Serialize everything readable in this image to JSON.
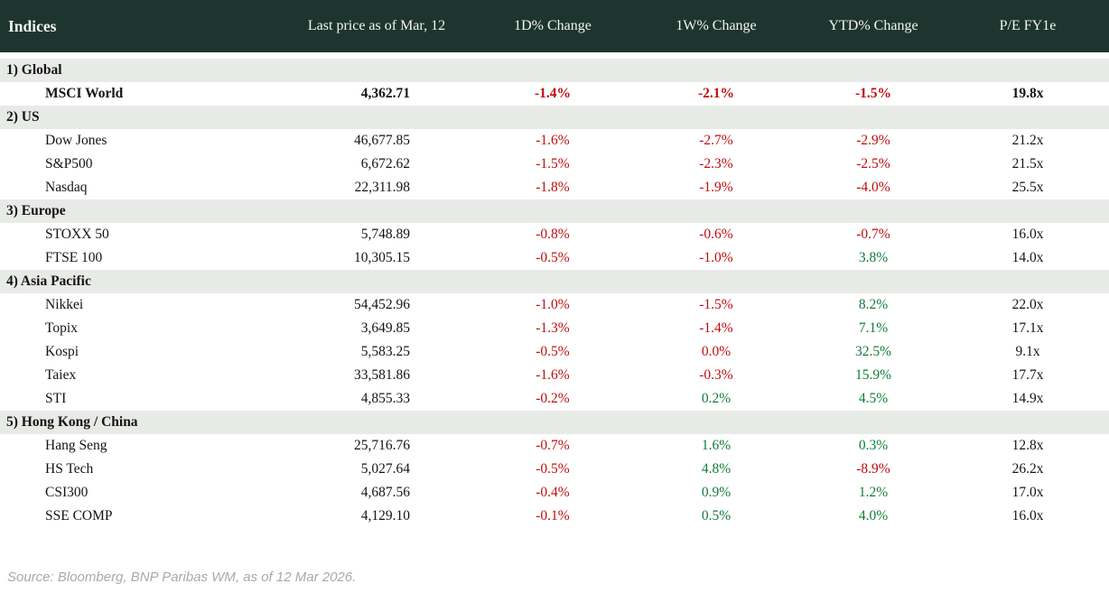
{
  "colors": {
    "header_background": "#1e352f",
    "header_text": "#f5f4ef",
    "section_row_background": "#e7eae6",
    "negative_value": "#c00d0d",
    "positive_value": "#0e7d38",
    "body_text": "#141414",
    "source_text": "#a2abb2"
  },
  "chart_data": {
    "type": "table",
    "title": "Indices",
    "columns": [
      "Indices",
      "Last price as of Mar, 12",
      "1D% Change",
      "1W% Change",
      "YTD% Change",
      "P/E FY1e"
    ],
    "sections": [
      {
        "label": "1) Global",
        "rows": [
          {
            "name": "MSCI World",
            "price": "4,362.71",
            "d1": "-1.4%",
            "w1": "-2.1%",
            "ytd": "-1.5%",
            "pe": "19.8x",
            "bold": true
          }
        ]
      },
      {
        "label": "2) US",
        "rows": [
          {
            "name": "Dow Jones",
            "price": "46,677.85",
            "d1": "-1.6%",
            "w1": "-2.7%",
            "ytd": "-2.9%",
            "pe": "21.2x"
          },
          {
            "name": "S&P500",
            "price": "6,672.62",
            "d1": "-1.5%",
            "w1": "-2.3%",
            "ytd": "-2.5%",
            "pe": "21.5x"
          },
          {
            "name": "Nasdaq",
            "price": "22,311.98",
            "d1": "-1.8%",
            "w1": "-1.9%",
            "ytd": "-4.0%",
            "pe": "25.5x"
          }
        ]
      },
      {
        "label": "3) Europe",
        "rows": [
          {
            "name": "STOXX 50",
            "price": "5,748.89",
            "d1": "-0.8%",
            "w1": "-0.6%",
            "ytd": "-0.7%",
            "pe": "16.0x"
          },
          {
            "name": "FTSE 100",
            "price": "10,305.15",
            "d1": "-0.5%",
            "w1": "-1.0%",
            "ytd": "3.8%",
            "pe": "14.0x"
          }
        ]
      },
      {
        "label": "4) Asia Pacific",
        "rows": [
          {
            "name": "Nikkei",
            "price": "54,452.96",
            "d1": "-1.0%",
            "w1": "-1.5%",
            "ytd": "8.2%",
            "pe": "22.0x"
          },
          {
            "name": "Topix",
            "price": "3,649.85",
            "d1": "-1.3%",
            "w1": "-1.4%",
            "ytd": "7.1%",
            "pe": "17.1x"
          },
          {
            "name": "Kospi",
            "price": "5,583.25",
            "d1": "-0.5%",
            "w1": "0.0%",
            "ytd": "32.5%",
            "pe": "9.1x"
          },
          {
            "name": "Taiex",
            "price": "33,581.86",
            "d1": "-1.6%",
            "w1": "-0.3%",
            "ytd": "15.9%",
            "pe": "17.7x"
          },
          {
            "name": "STI",
            "price": "4,855.33",
            "d1": "-0.2%",
            "w1": "0.2%",
            "ytd": "4.5%",
            "pe": "14.9x"
          }
        ]
      },
      {
        "label": "5) Hong Kong / China",
        "rows": [
          {
            "name": "Hang Seng",
            "price": "25,716.76",
            "d1": "-0.7%",
            "w1": "1.6%",
            "ytd": "0.3%",
            "pe": "12.8x"
          },
          {
            "name": "HS Tech",
            "price": "5,027.64",
            "d1": "-0.5%",
            "w1": "4.8%",
            "ytd": "-8.9%",
            "pe": "26.2x"
          },
          {
            "name": "CSI300",
            "price": "4,687.56",
            "d1": "-0.4%",
            "w1": "0.9%",
            "ytd": "1.2%",
            "pe": "17.0x"
          },
          {
            "name": "SSE COMP",
            "price": "4,129.10",
            "d1": "-0.1%",
            "w1": "0.5%",
            "ytd": "4.0%",
            "pe": "16.0x"
          }
        ]
      }
    ]
  },
  "footer": {
    "source": "Source: Bloomberg, BNP Paribas WM, as of 12 Mar 2026."
  }
}
